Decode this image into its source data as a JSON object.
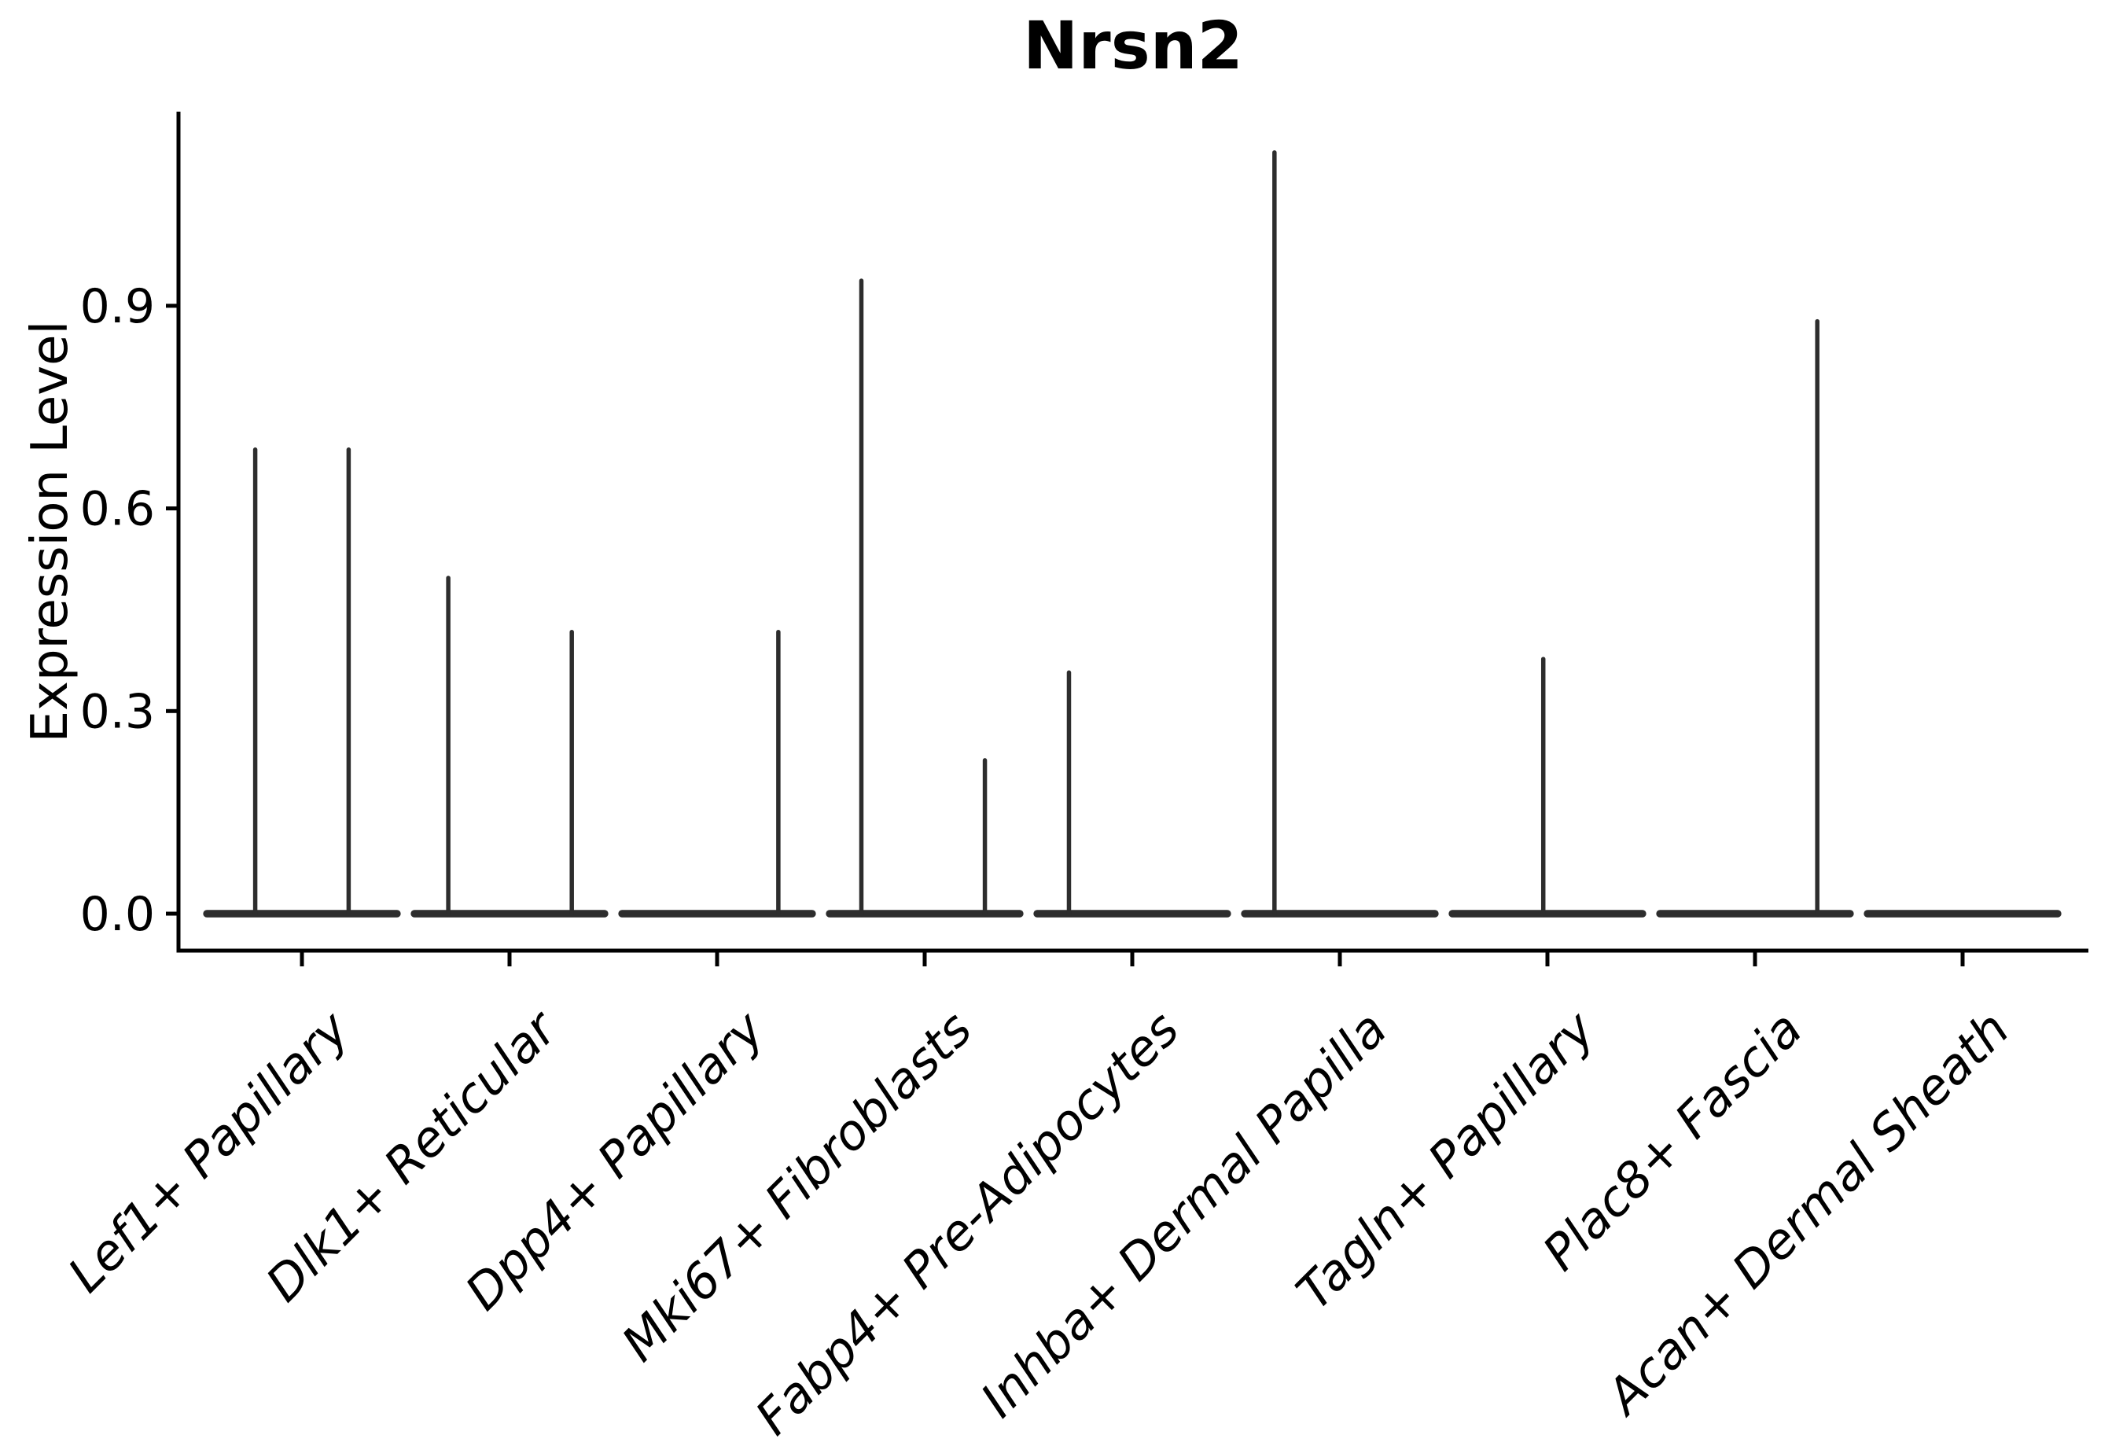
{
  "chart_data": {
    "type": "violin",
    "title": "Nrsn2",
    "xlabel": "",
    "ylabel": "Expression Level",
    "ytick_labels": [
      "0.0",
      "0.3",
      "0.6",
      "0.9"
    ],
    "ytick_values": [
      0.0,
      0.3,
      0.6,
      0.9
    ],
    "ylim": [
      -0.055,
      1.19
    ],
    "grid": false,
    "legend": "none",
    "style": "thin spike violins (sparse expression), flat density base at 0 per cluster",
    "categories": [
      "Lef1+ Papillary",
      "Dlk1+ Reticular",
      "Dpp4+ Papillary",
      "Mki67+ Fibroblasts",
      "Fabp4+ Pre-Adipocytes",
      "Inhba+ Dermal Papilla",
      "Tagln+ Papillary",
      "Plac8+ Fascia",
      "Acan+ Dermal Sheath"
    ],
    "violins": [
      {
        "category": "Lef1+ Papillary",
        "spikes": [
          {
            "pos": -0.225,
            "max": 0.69
          },
          {
            "pos": 0.225,
            "max": 0.69
          }
        ]
      },
      {
        "category": "Dlk1+ Reticular",
        "spikes": [
          {
            "pos": -0.295,
            "max": 0.5
          },
          {
            "pos": 0.3,
            "max": 0.42
          }
        ]
      },
      {
        "category": "Dpp4+ Papillary",
        "spikes": [
          {
            "pos": 0.295,
            "max": 0.42
          }
        ]
      },
      {
        "category": "Mki67+ Fibroblasts",
        "spikes": [
          {
            "pos": -0.305,
            "max": 0.94
          },
          {
            "pos": 0.29,
            "max": 0.23
          }
        ]
      },
      {
        "category": "Fabp4+ Pre-Adipocytes",
        "spikes": [
          {
            "pos": -0.305,
            "max": 0.36
          }
        ]
      },
      {
        "category": "Inhba+ Dermal Papilla",
        "spikes": [
          {
            "pos": -0.315,
            "max": 1.13
          }
        ]
      },
      {
        "category": "Tagln+ Papillary",
        "spikes": [
          {
            "pos": -0.02,
            "max": 0.38
          }
        ]
      },
      {
        "category": "Plac8+ Fascia",
        "spikes": [
          {
            "pos": 0.3,
            "max": 0.88
          }
        ]
      },
      {
        "category": "Acan+ Dermal Sheath",
        "spikes": []
      }
    ],
    "base_halfwidth_frac": 0.458,
    "colors": {
      "violin_line": "#2d2d2d",
      "axis": "#000000",
      "text": "#000000",
      "background": "#ffffff"
    }
  }
}
